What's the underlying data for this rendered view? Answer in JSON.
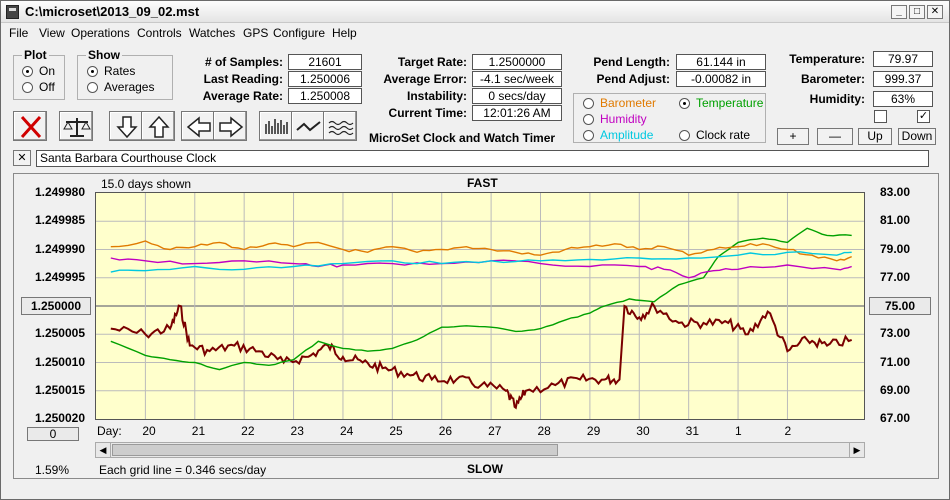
{
  "window": {
    "title": "C:\\microset\\2013_09_02.mst"
  },
  "menu": [
    "File",
    "View",
    "Operations",
    "Controls",
    "Watches",
    "GPS",
    "Configure",
    "Help"
  ],
  "plot_group": {
    "caption": "Plot",
    "on_label": "On",
    "off_label": "Off",
    "selected": "On"
  },
  "show_group": {
    "caption": "Show",
    "rates_label": "Rates",
    "averages_label": "Averages",
    "selected": "Rates"
  },
  "stats": {
    "samples_label": "# of Samples:",
    "samples": "21601",
    "last_reading_label": "Last Reading:",
    "last_reading": "1.250006",
    "average_rate_label": "Average Rate:",
    "average_rate": "1.250008",
    "target_rate_label": "Target Rate:",
    "target_rate": "1.2500000",
    "average_error_label": "Average Error:",
    "average_error": "-4.1 sec/week",
    "instability_label": "Instability:",
    "instability": "0 secs/day",
    "current_time_label": "Current Time:",
    "current_time": "12:01:26 AM",
    "pend_length_label": "Pend Length:",
    "pend_length": "61.144 in",
    "pend_adjust_label": "Pend Adjust:",
    "pend_adjust": "-0.00082 in",
    "temperature_label": "Temperature:",
    "temperature": "79.97",
    "barometer_label": "Barometer:",
    "barometer": "999.37",
    "humidity_label": "Humidity:",
    "humidity": "63%"
  },
  "app_caption": "MicroSet Clock and Watch Timer",
  "sensor_options": {
    "barometer": "Barometer",
    "temperature": "Temperature",
    "humidity": "Humidity",
    "amplitude": "Amplitude",
    "clock_rate": "Clock rate",
    "selected": "Temperature",
    "colors": {
      "barometer": "#e07a00",
      "temperature": "#00a000",
      "humidity": "#c000c0",
      "amplitude": "#00c8e0",
      "clock_rate": "#000000"
    }
  },
  "small_buttons": {
    "plus": "+",
    "minus": "—",
    "up": "Up",
    "down": "Down"
  },
  "checkboxes": [
    {
      "checked": false
    },
    {
      "checked": true
    }
  ],
  "watch_name": "Santa Barbara Courthouse Clock",
  "close_glyph": "✕",
  "chart_header": {
    "days_shown": "15.0 days shown",
    "fast": "FAST",
    "slow": "SLOW",
    "grid_note": "Each grid line = 0.346 secs/day",
    "percent": "1.59%",
    "day_label": "Day:"
  },
  "center_buttons": {
    "left": "1.250000",
    "right": "75.00",
    "bottom_left": "0"
  },
  "chart_data": {
    "type": "line",
    "left_axis": {
      "ticks": [
        "1.249980",
        "1.249985",
        "1.249990",
        "1.249995",
        "1.250000",
        "1.250005",
        "1.250010",
        "1.250015",
        "1.250020"
      ],
      "range": [
        1.24998,
        1.25002
      ],
      "inverted": true
    },
    "right_axis": {
      "ticks": [
        "83.00",
        "81.00",
        "79.00",
        "77.00",
        "75.00",
        "73.00",
        "71.00",
        "69.00",
        "67.00"
      ],
      "range": [
        67,
        83
      ]
    },
    "x_ticks": [
      "20",
      "21",
      "22",
      "23",
      "24",
      "25",
      "26",
      "27",
      "28",
      "29",
      "30",
      "31",
      "1",
      "2"
    ],
    "series": [
      {
        "name": "Clock rate",
        "color": "#7a0000",
        "axis": "left",
        "points": [
          [
            19.3,
            1.250004
          ],
          [
            20.0,
            1.250005
          ],
          [
            20.5,
            1.250004
          ],
          [
            20.7,
            1.25
          ],
          [
            20.9,
            1.250007
          ],
          [
            21.3,
            1.250008
          ],
          [
            21.8,
            1.250007
          ],
          [
            22.3,
            1.250008
          ],
          [
            22.8,
            1.25001
          ],
          [
            23.3,
            1.250009
          ],
          [
            23.7,
            1.250007
          ],
          [
            24.0,
            1.250009
          ],
          [
            24.4,
            1.25001
          ],
          [
            24.8,
            1.250011
          ],
          [
            25.3,
            1.250012
          ],
          [
            25.8,
            1.250013
          ],
          [
            26.3,
            1.250013
          ],
          [
            26.8,
            1.250014
          ],
          [
            27.3,
            1.250015
          ],
          [
            27.5,
            1.250018
          ],
          [
            27.7,
            1.250015
          ],
          [
            28.3,
            1.250014
          ],
          [
            28.8,
            1.250013
          ],
          [
            29.3,
            1.250013
          ],
          [
            29.6,
            1.250013
          ],
          [
            29.7,
            1.25
          ],
          [
            30.0,
            1.250002
          ],
          [
            30.3,
            1.25
          ],
          [
            30.8,
            1.250003
          ],
          [
            31.3,
            1.250003
          ],
          [
            31.8,
            1.250003
          ],
          [
            32.2,
            1.250005
          ],
          [
            32.6,
            1.250001
          ],
          [
            33.0,
            1.250008
          ],
          [
            33.4,
            1.250006
          ],
          [
            33.8,
            1.250007
          ],
          [
            34.3,
            1.250006
          ]
        ]
      },
      {
        "name": "Temperature",
        "color": "#00a000",
        "axis": "right",
        "points": [
          [
            19.3,
            72.5
          ],
          [
            20.0,
            71.5
          ],
          [
            20.5,
            71.2
          ],
          [
            21.0,
            71.0
          ],
          [
            21.5,
            70.5
          ],
          [
            22.0,
            71.0
          ],
          [
            22.5,
            70.8
          ],
          [
            23.0,
            71.2
          ],
          [
            23.5,
            72.5
          ],
          [
            24.0,
            72.0
          ],
          [
            24.5,
            71.8
          ],
          [
            25.0,
            72.0
          ],
          [
            25.5,
            72.6
          ],
          [
            26.0,
            73.5
          ],
          [
            26.5,
            73.6
          ],
          [
            27.0,
            73.5
          ],
          [
            27.5,
            73.2
          ],
          [
            28.0,
            73.4
          ],
          [
            28.5,
            74.0
          ],
          [
            29.0,
            74.5
          ],
          [
            29.3,
            75.0
          ],
          [
            29.8,
            75.5
          ],
          [
            30.3,
            75.3
          ],
          [
            30.8,
            76.5
          ],
          [
            31.3,
            77.0
          ],
          [
            31.6,
            78.5
          ],
          [
            32.0,
            79.5
          ],
          [
            32.5,
            79.8
          ],
          [
            33.0,
            79.5
          ],
          [
            33.4,
            80.5
          ],
          [
            33.8,
            80.0
          ],
          [
            34.3,
            80.0
          ]
        ]
      },
      {
        "name": "Barometer",
        "color": "#e07a00",
        "axis": "right",
        "points": [
          [
            19.3,
            79.2
          ],
          [
            20.0,
            79.6
          ],
          [
            20.5,
            79.0
          ],
          [
            21.0,
            79.2
          ],
          [
            21.5,
            79.5
          ],
          [
            22.0,
            79.0
          ],
          [
            22.5,
            79.4
          ],
          [
            23.0,
            79.2
          ],
          [
            23.5,
            79.5
          ],
          [
            24.0,
            79.0
          ],
          [
            24.5,
            78.8
          ],
          [
            25.0,
            79.2
          ],
          [
            25.5,
            78.8
          ],
          [
            26.0,
            79.0
          ],
          [
            26.5,
            79.2
          ],
          [
            27.0,
            79.0
          ],
          [
            27.5,
            78.8
          ],
          [
            28.0,
            78.6
          ],
          [
            28.5,
            79.0
          ],
          [
            29.0,
            79.2
          ],
          [
            29.5,
            79.4
          ],
          [
            30.0,
            79.0
          ],
          [
            30.5,
            79.2
          ],
          [
            31.0,
            78.6
          ],
          [
            31.5,
            79.0
          ],
          [
            32.0,
            79.2
          ],
          [
            32.5,
            79.4
          ],
          [
            33.0,
            79.0
          ],
          [
            33.5,
            78.6
          ],
          [
            34.0,
            78.2
          ],
          [
            34.3,
            78.5
          ]
        ]
      },
      {
        "name": "Humidity",
        "color": "#c000c0",
        "axis": "right",
        "points": [
          [
            19.3,
            78.4
          ],
          [
            20.0,
            78.2
          ],
          [
            21.0,
            78.0
          ],
          [
            22.0,
            78.2
          ],
          [
            23.0,
            78.0
          ],
          [
            23.5,
            77.8
          ],
          [
            24.0,
            77.9
          ],
          [
            25.0,
            78.0
          ],
          [
            26.0,
            78.0
          ],
          [
            27.0,
            78.2
          ],
          [
            28.0,
            78.0
          ],
          [
            29.0,
            77.8
          ],
          [
            30.0,
            77.8
          ],
          [
            30.5,
            77.6
          ],
          [
            31.0,
            77.0
          ],
          [
            31.5,
            77.5
          ],
          [
            32.0,
            77.6
          ],
          [
            33.0,
            77.9
          ],
          [
            34.0,
            77.6
          ],
          [
            34.3,
            77.8
          ]
        ]
      },
      {
        "name": "Amplitude",
        "color": "#00c8e0",
        "axis": "right",
        "points": [
          [
            19.3,
            77.4
          ],
          [
            20.0,
            77.5
          ],
          [
            21.0,
            77.8
          ],
          [
            22.0,
            77.6
          ],
          [
            23.0,
            77.8
          ],
          [
            24.0,
            78.0
          ],
          [
            25.0,
            78.2
          ],
          [
            26.0,
            78.0
          ],
          [
            27.0,
            78.2
          ],
          [
            28.0,
            78.2
          ],
          [
            29.0,
            78.3
          ],
          [
            30.0,
            78.4
          ],
          [
            31.0,
            78.4
          ],
          [
            32.0,
            78.6
          ],
          [
            33.0,
            78.8
          ],
          [
            34.0,
            78.6
          ],
          [
            34.3,
            78.8
          ]
        ]
      }
    ]
  }
}
